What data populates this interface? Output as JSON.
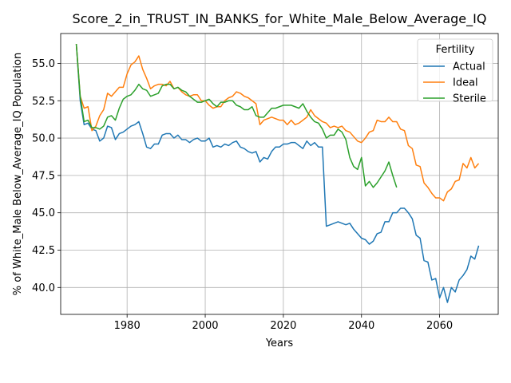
{
  "chart_data": {
    "type": "line",
    "title": "Score_2_in_TRUST_IN_BANKS_for_White_Male_Below_Average_IQ",
    "xlabel": "Years",
    "ylabel": "% of White_Male Below_Average_IQ Population",
    "xlim": [
      1963,
      2075
    ],
    "ylim": [
      38.2,
      57.0
    ],
    "xticks": [
      1980,
      2000,
      2020,
      2040,
      2060
    ],
    "yticks": [
      40.0,
      42.5,
      45.0,
      47.5,
      50.0,
      52.5,
      55.0
    ],
    "xtick_labels": [
      "1980",
      "2000",
      "2020",
      "2040",
      "2060"
    ],
    "ytick_labels": [
      "40.0",
      "42.5",
      "45.0",
      "47.5",
      "50.0",
      "52.5",
      "55.0"
    ],
    "grid": true,
    "legend": {
      "title": "Fertility",
      "position": "top-right"
    },
    "series": [
      {
        "name": "Actual",
        "color": "#1f77b4",
        "x": [
          1967,
          1968,
          1969,
          1970,
          1971,
          1972,
          1973,
          1974,
          1975,
          1976,
          1977,
          1978,
          1979,
          1980,
          1981,
          1982,
          1983,
          1984,
          1985,
          1986,
          1987,
          1988,
          1989,
          1990,
          1991,
          1992,
          1993,
          1994,
          1995,
          1996,
          1997,
          1998,
          1999,
          2000,
          2001,
          2002,
          2003,
          2004,
          2005,
          2006,
          2007,
          2008,
          2009,
          2010,
          2011,
          2012,
          2013,
          2014,
          2015,
          2016,
          2017,
          2018,
          2019,
          2020,
          2021,
          2022,
          2023,
          2024,
          2025,
          2026,
          2027,
          2028,
          2029,
          2030,
          2031,
          2032,
          2033,
          2034,
          2035,
          2036,
          2037,
          2038,
          2039,
          2040,
          2041,
          2042,
          2043,
          2044,
          2045,
          2046,
          2047,
          2048,
          2049,
          2050,
          2051,
          2052,
          2053,
          2054,
          2055,
          2056,
          2057,
          2058,
          2059,
          2060,
          2061,
          2062,
          2063,
          2064,
          2065,
          2066,
          2067,
          2068,
          2069,
          2070
        ],
        "values": [
          56.3,
          52.5,
          50.9,
          51.0,
          50.6,
          50.5,
          49.8,
          50.0,
          50.8,
          50.7,
          49.9,
          50.3,
          50.4,
          50.6,
          50.8,
          50.9,
          51.1,
          50.3,
          49.4,
          49.3,
          49.6,
          49.6,
          50.2,
          50.3,
          50.3,
          50.0,
          50.2,
          49.9,
          49.9,
          49.7,
          49.9,
          50.0,
          49.8,
          49.8,
          50.0,
          49.4,
          49.5,
          49.4,
          49.6,
          49.5,
          49.7,
          49.8,
          49.4,
          49.3,
          49.1,
          49.0,
          49.1,
          48.4,
          48.7,
          48.6,
          49.1,
          49.4,
          49.4,
          49.6,
          49.6,
          49.7,
          49.7,
          49.5,
          49.3,
          49.8,
          49.5,
          49.7,
          49.4,
          49.4,
          44.1,
          44.2,
          44.3,
          44.4,
          44.3,
          44.2,
          44.3,
          43.9,
          43.6,
          43.3,
          43.2,
          42.9,
          43.1,
          43.6,
          43.7,
          44.4,
          44.4,
          45.0,
          45.0,
          45.3,
          45.3,
          45.0,
          44.6,
          43.5,
          43.3,
          41.8,
          41.7,
          40.5,
          40.6,
          39.3,
          40.0,
          39.0,
          40.0,
          39.7,
          40.5,
          40.8,
          41.2,
          42.1,
          41.9,
          42.8
        ]
      },
      {
        "name": "Ideal",
        "color": "#ff7f0e",
        "x": [
          1967,
          1968,
          1969,
          1970,
          1971,
          1972,
          1973,
          1974,
          1975,
          1976,
          1977,
          1978,
          1979,
          1980,
          1981,
          1982,
          1983,
          1984,
          1985,
          1986,
          1987,
          1988,
          1989,
          1990,
          1991,
          1992,
          1993,
          1994,
          1995,
          1996,
          1997,
          1998,
          1999,
          2000,
          2001,
          2002,
          2003,
          2004,
          2005,
          2006,
          2007,
          2008,
          2009,
          2010,
          2011,
          2012,
          2013,
          2014,
          2015,
          2016,
          2017,
          2018,
          2019,
          2020,
          2021,
          2022,
          2023,
          2024,
          2025,
          2026,
          2027,
          2028,
          2029,
          2030,
          2031,
          2032,
          2033,
          2034,
          2035,
          2036,
          2037,
          2038,
          2039,
          2040,
          2041,
          2042,
          2043,
          2044,
          2045,
          2046,
          2047,
          2048,
          2049,
          2050,
          2051,
          2052,
          2053,
          2054,
          2055,
          2056,
          2057,
          2058,
          2059,
          2060,
          2061,
          2062,
          2063,
          2064,
          2065,
          2066,
          2067,
          2068,
          2069,
          2070
        ],
        "values": [
          56.3,
          52.8,
          52.0,
          52.1,
          50.5,
          50.8,
          51.5,
          51.9,
          53.0,
          52.8,
          53.1,
          53.4,
          53.4,
          54.3,
          54.9,
          55.1,
          55.5,
          54.6,
          54.0,
          53.3,
          53.5,
          53.6,
          53.6,
          53.5,
          53.8,
          53.3,
          53.4,
          53.1,
          52.9,
          52.8,
          52.9,
          52.9,
          52.5,
          52.5,
          52.2,
          52.0,
          52.1,
          52.1,
          52.5,
          52.7,
          52.8,
          53.1,
          53.0,
          52.8,
          52.7,
          52.5,
          52.3,
          50.9,
          51.2,
          51.3,
          51.4,
          51.3,
          51.2,
          51.2,
          50.9,
          51.2,
          50.9,
          51.0,
          51.2,
          51.4,
          51.9,
          51.5,
          51.3,
          51.1,
          51.0,
          50.7,
          50.8,
          50.7,
          50.8,
          50.5,
          50.4,
          50.1,
          49.8,
          49.7,
          50.0,
          50.4,
          50.5,
          51.2,
          51.1,
          51.1,
          51.4,
          51.1,
          51.1,
          50.6,
          50.5,
          49.5,
          49.3,
          48.2,
          48.1,
          47.0,
          46.7,
          46.3,
          46.0,
          46.0,
          45.8,
          46.4,
          46.6,
          47.1,
          47.2,
          48.3,
          48.0,
          48.7,
          48.0,
          48.3
        ]
      },
      {
        "name": "Sterile",
        "color": "#2ca02c",
        "x": [
          1967,
          1968,
          1969,
          1970,
          1971,
          1972,
          1973,
          1974,
          1975,
          1976,
          1977,
          1978,
          1979,
          1980,
          1981,
          1982,
          1983,
          1984,
          1985,
          1986,
          1987,
          1988,
          1989,
          1990,
          1991,
          1992,
          1993,
          1994,
          1995,
          1996,
          1997,
          1998,
          1999,
          2000,
          2001,
          2002,
          2003,
          2004,
          2005,
          2006,
          2007,
          2008,
          2009,
          2010,
          2011,
          2012,
          2013,
          2014,
          2015,
          2016,
          2017,
          2018,
          2019,
          2020,
          2021,
          2022,
          2023,
          2024,
          2025,
          2026,
          2027,
          2028,
          2029,
          2030,
          2031,
          2032,
          2033,
          2034,
          2035,
          2036,
          2037,
          2038,
          2039,
          2040,
          2041,
          2042,
          2043,
          2044,
          2045,
          2046,
          2047,
          2048,
          2049,
          2050
        ],
        "values": [
          56.3,
          52.8,
          51.1,
          51.2,
          50.7,
          50.7,
          50.6,
          50.8,
          51.4,
          51.5,
          51.2,
          52.0,
          52.6,
          52.8,
          52.9,
          53.2,
          53.6,
          53.3,
          53.2,
          52.8,
          52.9,
          53.0,
          53.5,
          53.6,
          53.6,
          53.3,
          53.4,
          53.2,
          53.1,
          52.8,
          52.6,
          52.4,
          52.4,
          52.5,
          52.6,
          52.3,
          52.1,
          52.4,
          52.4,
          52.5,
          52.5,
          52.2,
          52.1,
          51.9,
          51.9,
          52.1,
          51.5,
          51.4,
          51.4,
          51.7,
          52.0,
          52.0,
          52.1,
          52.2,
          52.2,
          52.2,
          52.1,
          52.0,
          52.3,
          51.8,
          51.4,
          51.1,
          51.0,
          50.6,
          50.0,
          50.2,
          50.2,
          50.6,
          50.4,
          49.9,
          48.7,
          48.1,
          47.9,
          48.7,
          46.8,
          47.1,
          46.7,
          47.0,
          47.4,
          47.8,
          48.4,
          47.5,
          46.7,
          null
        ]
      }
    ]
  }
}
